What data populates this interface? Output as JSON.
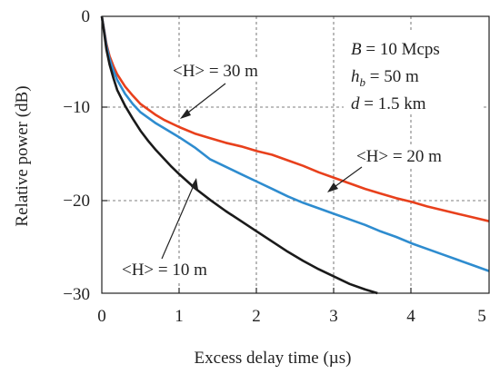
{
  "chart_data": {
    "type": "line",
    "xlabel": "Excess delay time (µs)",
    "ylabel": "Relative power (dB)",
    "xlim": [
      0,
      5
    ],
    "ylim": [
      -30,
      0
    ],
    "xticks": [
      "0",
      "1",
      "2",
      "3",
      "4",
      "5"
    ],
    "yticks": [
      "0",
      "−10",
      "−20",
      "−30"
    ],
    "grid": true,
    "params": {
      "line1": {
        "italic": "B",
        "rest": " = 10 Mcps"
      },
      "line2": {
        "italic": "h",
        "sub": "b",
        "rest": " = 50 m"
      },
      "line3": {
        "italic": "d",
        "rest": " = 1.5 km"
      }
    },
    "series": [
      {
        "label": "<H> = 30 m",
        "color": "#e8401c",
        "x": [
          0,
          0.03,
          0.06,
          0.1,
          0.15,
          0.2,
          0.3,
          0.4,
          0.5,
          0.6,
          0.7,
          0.8,
          1.0,
          1.2,
          1.4,
          1.6,
          1.8,
          2.0,
          2.2,
          2.4,
          2.6,
          2.8,
          3.0,
          3.2,
          3.4,
          3.6,
          3.8,
          4.0,
          4.2,
          4.4,
          4.6,
          4.8,
          5.0
        ],
        "y": [
          0,
          -1.5,
          -3.0,
          -4.3,
          -5.4,
          -6.3,
          -7.6,
          -8.6,
          -9.5,
          -10.1,
          -10.7,
          -11.2,
          -12.0,
          -12.7,
          -13.2,
          -13.7,
          -14.1,
          -14.6,
          -15.0,
          -15.6,
          -16.2,
          -16.9,
          -17.5,
          -18.1,
          -18.7,
          -19.2,
          -19.7,
          -20.1,
          -20.6,
          -21.0,
          -21.4,
          -21.8,
          -22.2
        ]
      },
      {
        "label": "<H> = 20 m",
        "color": "#2e8ccf",
        "x": [
          0,
          0.03,
          0.06,
          0.1,
          0.15,
          0.2,
          0.3,
          0.4,
          0.5,
          0.6,
          0.7,
          0.8,
          1.0,
          1.2,
          1.4,
          1.6,
          1.8,
          2.0,
          2.2,
          2.4,
          2.6,
          2.8,
          3.0,
          3.2,
          3.4,
          3.6,
          3.8,
          4.0,
          4.2,
          4.4,
          4.6,
          4.8,
          5.0
        ],
        "y": [
          0,
          -1.6,
          -3.2,
          -4.6,
          -5.9,
          -6.9,
          -8.4,
          -9.5,
          -10.4,
          -11.0,
          -11.6,
          -12.1,
          -13.1,
          -14.2,
          -15.5,
          -16.3,
          -17.1,
          -17.9,
          -18.7,
          -19.5,
          -20.2,
          -20.8,
          -21.4,
          -22.0,
          -22.6,
          -23.3,
          -23.9,
          -24.6,
          -25.2,
          -25.8,
          -26.4,
          -27.0,
          -27.6
        ]
      },
      {
        "label": "<H> = 10 m",
        "color": "#1a1a1a",
        "x": [
          0,
          0.03,
          0.06,
          0.1,
          0.15,
          0.2,
          0.3,
          0.4,
          0.5,
          0.6,
          0.7,
          0.8,
          0.9,
          1.0,
          1.2,
          1.4,
          1.6,
          1.8,
          2.0,
          2.2,
          2.4,
          2.6,
          2.8,
          3.0,
          3.2,
          3.4,
          3.56
        ],
        "y": [
          0,
          -1.8,
          -3.6,
          -5.2,
          -6.7,
          -8.0,
          -9.7,
          -11.1,
          -12.4,
          -13.5,
          -14.5,
          -15.4,
          -16.3,
          -17.1,
          -18.6,
          -19.9,
          -21.1,
          -22.2,
          -23.3,
          -24.4,
          -25.5,
          -26.5,
          -27.4,
          -28.2,
          -29.0,
          -29.6,
          -30.0
        ]
      }
    ]
  }
}
